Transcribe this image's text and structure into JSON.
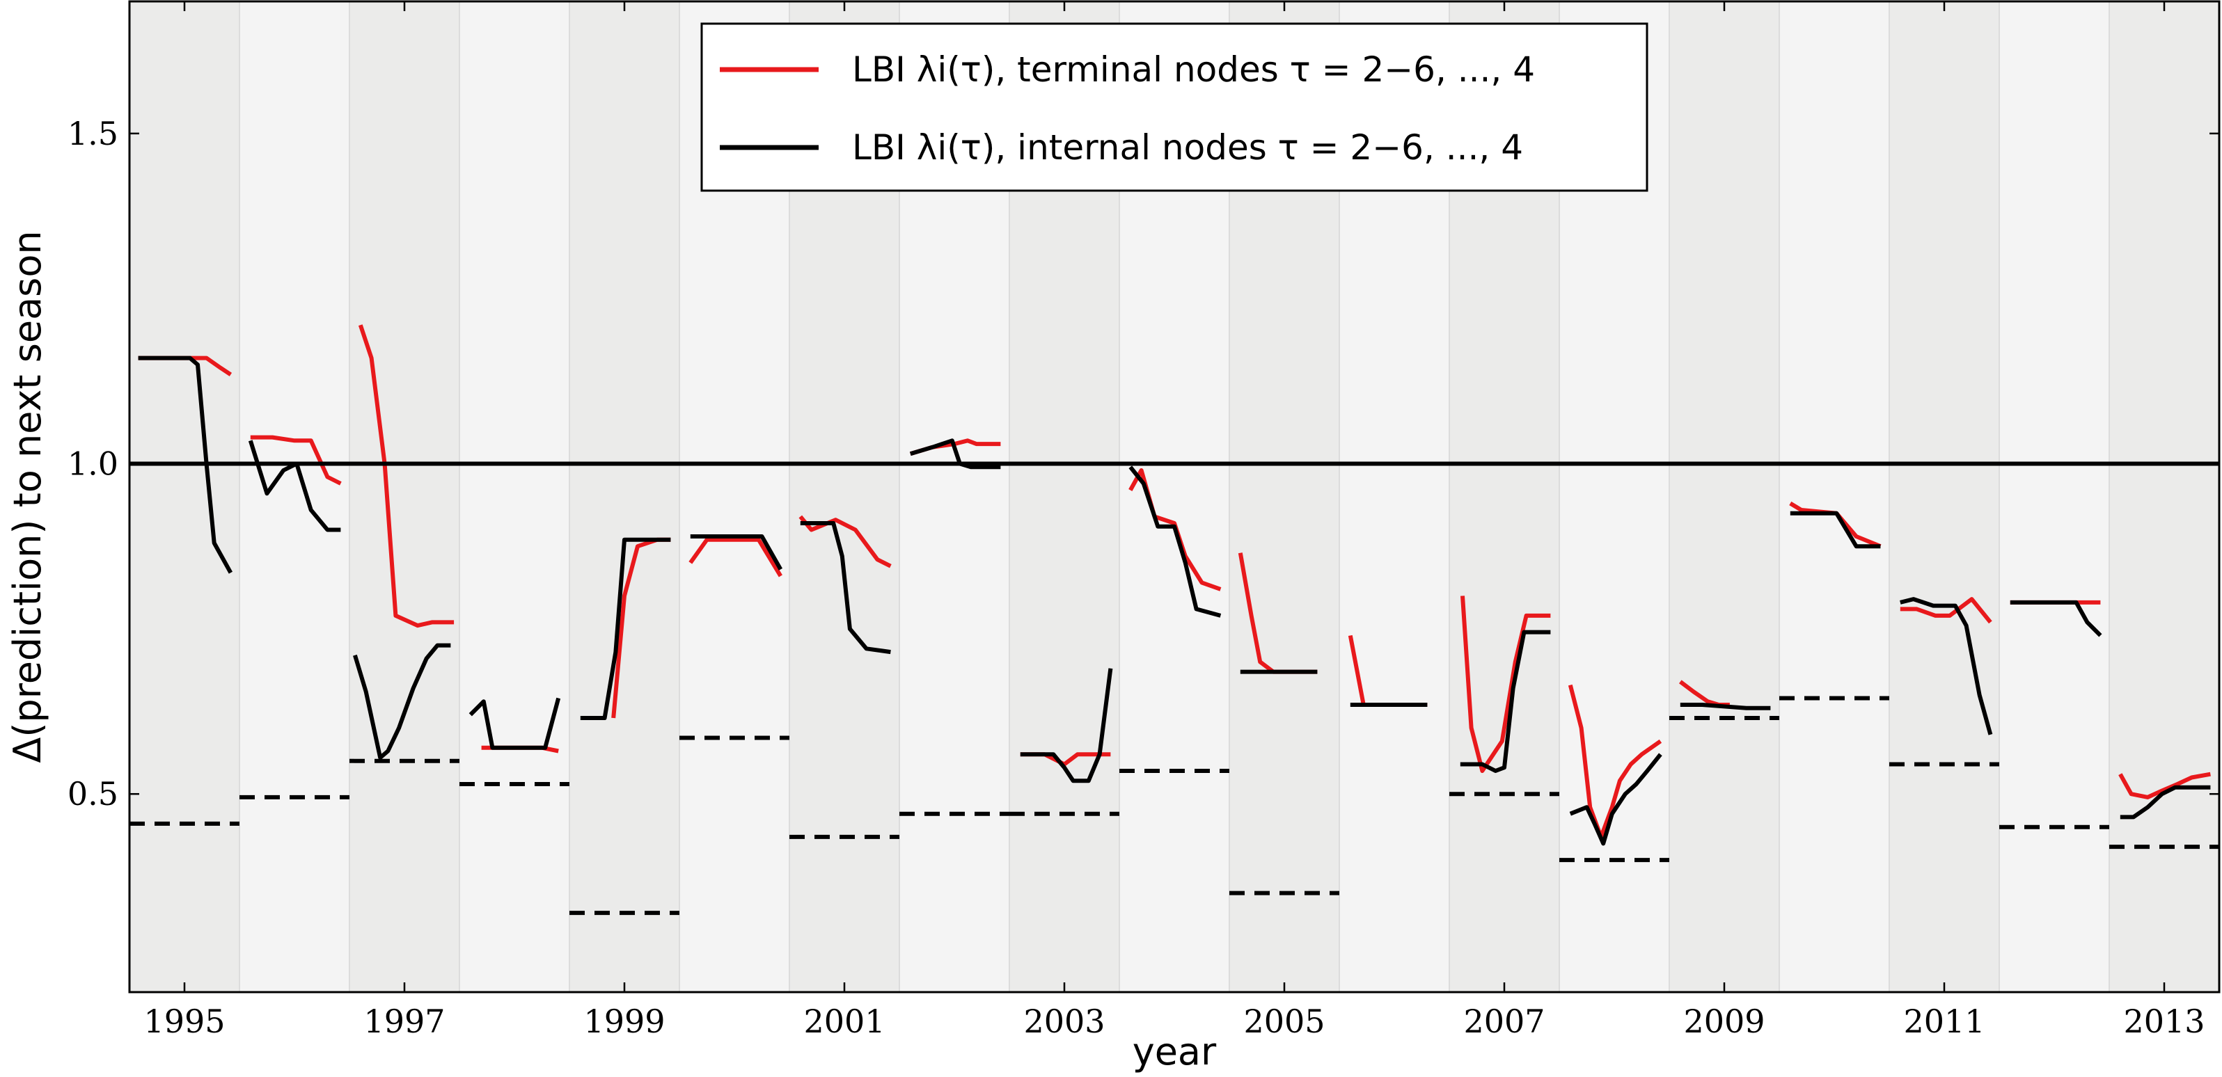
{
  "chart_data": {
    "type": "line",
    "xlabel": "year",
    "ylabel": "Δ(prediction) to next season",
    "xlim": [
      1994.5,
      2013.5
    ],
    "ylim": [
      0.2,
      1.7
    ],
    "xticks": [
      1995,
      1997,
      1999,
      2001,
      2003,
      2005,
      2007,
      2009,
      2011,
      2013
    ],
    "xtick_labels": [
      "1995",
      "1997",
      "1999",
      "2001",
      "2003",
      "2005",
      "2007",
      "2009",
      "2011",
      "2013"
    ],
    "yticks": [
      0.5,
      1.0,
      1.5
    ],
    "ytick_labels": [
      "0.5",
      "1.0",
      "1.5"
    ],
    "grid": false,
    "background": "alternating shaded vertical bands, one per season",
    "reference_line": {
      "y": 1.0,
      "color": "#000000"
    },
    "legend_position": "top-center",
    "series": [
      {
        "name": "LBI λi(τ), terminal nodes τ = 2^−6, ..., 4",
        "color": "#e8191c",
        "segments": [
          {
            "x": [
              1994.58,
              1995.07,
              1995.2,
              1995.33,
              1995.42
            ],
            "y": [
              1.16,
              1.16,
              1.16,
              1.145,
              1.135
            ]
          },
          {
            "x": [
              1995.6,
              1995.8,
              1996.0,
              1996.15,
              1996.3,
              1996.42
            ],
            "y": [
              1.04,
              1.04,
              1.035,
              1.035,
              0.98,
              0.97
            ]
          },
          {
            "x": [
              1996.6,
              1996.7,
              1996.82,
              1996.92,
              1997.12,
              1997.25,
              1997.45
            ],
            "y": [
              1.21,
              1.16,
              1.0,
              0.77,
              0.755,
              0.76,
              0.76
            ]
          },
          {
            "x": [
              1997.7,
              1997.85,
              1998.05,
              1998.25,
              1998.4
            ],
            "y": [
              0.57,
              0.57,
              0.57,
              0.57,
              0.565
            ]
          },
          {
            "x": [
              1998.9,
              1999.0,
              1999.12,
              1999.3,
              1999.42
            ],
            "y": [
              0.615,
              0.8,
              0.875,
              0.885,
              0.885
            ]
          },
          {
            "x": [
              1999.6,
              1999.75,
              2000.05,
              2000.22,
              2000.42
            ],
            "y": [
              0.85,
              0.885,
              0.885,
              0.885,
              0.83
            ]
          },
          {
            "x": [
              2000.6,
              2000.7,
              2000.92,
              2001.1,
              2001.3,
              2001.42
            ],
            "y": [
              0.92,
              0.9,
              0.915,
              0.9,
              0.855,
              0.845
            ]
          },
          {
            "x": [
              2001.6,
              2001.8,
              2002.0,
              2002.12,
              2002.2,
              2002.42
            ],
            "y": [
              1.015,
              1.025,
              1.03,
              1.035,
              1.03,
              1.03
            ]
          },
          {
            "x": [
              2002.6,
              2002.82,
              2003.0,
              2003.12,
              2003.42
            ],
            "y": [
              0.56,
              0.56,
              0.545,
              0.56,
              0.56
            ]
          },
          {
            "x": [
              2003.6,
              2003.7,
              2003.82,
              2004.0,
              2004.1,
              2004.25,
              2004.42
            ],
            "y": [
              0.96,
              0.99,
              0.92,
              0.91,
              0.86,
              0.82,
              0.81
            ]
          },
          {
            "x": [
              2004.6,
              2004.7,
              2004.78,
              2004.9,
              2005.3
            ],
            "y": [
              0.865,
              0.77,
              0.7,
              0.685,
              0.685
            ]
          },
          {
            "x": [
              2005.6,
              2005.72,
              2006.3
            ],
            "y": [
              0.74,
              0.635,
              0.635
            ]
          },
          {
            "x": [
              2006.62,
              2006.7,
              2006.8,
              2006.98,
              2007.1,
              2007.2,
              2007.42
            ],
            "y": [
              0.8,
              0.6,
              0.535,
              0.58,
              0.7,
              0.77,
              0.77
            ]
          },
          {
            "x": [
              2007.6,
              2007.7,
              2007.78,
              2007.88,
              2007.98,
              2008.05,
              2008.15,
              2008.25,
              2008.42
            ],
            "y": [
              0.665,
              0.6,
              0.48,
              0.435,
              0.48,
              0.52,
              0.545,
              0.56,
              0.58
            ]
          },
          {
            "x": [
              2008.6,
              2008.72,
              2008.85,
              2008.95,
              2009.05
            ],
            "y": [
              0.67,
              0.655,
              0.64,
              0.635,
              0.635
            ]
          },
          {
            "x": [
              2009.6,
              2009.7,
              2010.02,
              2010.2,
              2010.42
            ],
            "y": [
              0.94,
              0.93,
              0.925,
              0.89,
              0.875
            ]
          },
          {
            "x": [
              2010.6,
              2010.75,
              2010.92,
              2011.05,
              2011.25,
              2011.42
            ],
            "y": [
              0.78,
              0.78,
              0.77,
              0.77,
              0.795,
              0.76
            ]
          },
          {
            "x": [
              2011.6,
              2011.9,
              2012.42
            ],
            "y": [
              0.79,
              0.79,
              0.79
            ]
          },
          {
            "x": [
              2012.6,
              2012.7,
              2012.85,
              2012.98,
              2013.12,
              2013.25,
              2013.42
            ],
            "y": [
              0.53,
              0.5,
              0.495,
              0.505,
              0.515,
              0.525,
              0.53
            ]
          }
        ]
      },
      {
        "name": "LBI λi(τ), internal nodes τ = 2^−6, ..., 4",
        "color": "#000000",
        "segments": [
          {
            "x": [
              1994.58,
              1994.75,
              1995.05,
              1995.12,
              1995.2,
              1995.27,
              1995.42
            ],
            "y": [
              1.16,
              1.16,
              1.16,
              1.15,
              1.0,
              0.88,
              0.835
            ]
          },
          {
            "x": [
              1995.6,
              1995.75,
              1995.9,
              1996.02,
              1996.15,
              1996.3,
              1996.42
            ],
            "y": [
              1.035,
              0.955,
              0.99,
              1.0,
              0.93,
              0.9,
              0.9
            ]
          },
          {
            "x": [
              1996.55,
              1996.65,
              1996.78,
              1996.85,
              1996.95,
              1997.08,
              1997.2,
              1997.3,
              1997.42
            ],
            "y": [
              0.71,
              0.655,
              0.555,
              0.565,
              0.6,
              0.66,
              0.705,
              0.725,
              0.725
            ]
          },
          {
            "x": [
              1997.6,
              1997.72,
              1997.8,
              1998.05,
              1998.28,
              1998.4
            ],
            "y": [
              0.62,
              0.64,
              0.57,
              0.57,
              0.57,
              0.645
            ]
          },
          {
            "x": [
              1998.6,
              1998.82,
              1998.92,
              1999.0,
              1999.2,
              1999.42
            ],
            "y": [
              0.615,
              0.615,
              0.715,
              0.885,
              0.885,
              0.885
            ]
          },
          {
            "x": [
              1999.6,
              1999.92,
              2000.25,
              2000.42
            ],
            "y": [
              0.89,
              0.89,
              0.89,
              0.84
            ]
          },
          {
            "x": [
              2000.6,
              2000.9,
              2000.98,
              2001.05,
              2001.2,
              2001.42
            ],
            "y": [
              0.91,
              0.91,
              0.86,
              0.75,
              0.72,
              0.715
            ]
          },
          {
            "x": [
              2001.6,
              2001.8,
              2001.98,
              2002.05,
              2002.15,
              2002.42
            ],
            "y": [
              1.015,
              1.025,
              1.035,
              1.0,
              0.995,
              0.995
            ]
          },
          {
            "x": [
              2002.6,
              2002.78,
              2002.9,
              2003.0,
              2003.08,
              2003.22,
              2003.32,
              2003.42
            ],
            "y": [
              0.56,
              0.56,
              0.56,
              0.54,
              0.52,
              0.52,
              0.56,
              0.69
            ]
          },
          {
            "x": [
              2003.6,
              2003.72,
              2003.85,
              2004.0,
              2004.1,
              2004.2,
              2004.42
            ],
            "y": [
              0.995,
              0.97,
              0.905,
              0.905,
              0.85,
              0.78,
              0.77
            ]
          },
          {
            "x": [
              2004.6,
              2005.3
            ],
            "y": [
              0.685,
              0.685
            ]
          },
          {
            "x": [
              2005.6,
              2006.3
            ],
            "y": [
              0.635,
              0.635
            ]
          },
          {
            "x": [
              2006.6,
              2006.8,
              2006.92,
              2007.0,
              2007.08,
              2007.18,
              2007.42
            ],
            "y": [
              0.545,
              0.545,
              0.535,
              0.54,
              0.66,
              0.745,
              0.745
            ]
          },
          {
            "x": [
              2007.6,
              2007.75,
              2007.82,
              2007.9,
              2007.98,
              2008.1,
              2008.2,
              2008.3,
              2008.42
            ],
            "y": [
              0.47,
              0.48,
              0.455,
              0.425,
              0.47,
              0.5,
              0.515,
              0.535,
              0.56
            ]
          },
          {
            "x": [
              2008.6,
              2008.8,
              2009.2,
              2009.42
            ],
            "y": [
              0.635,
              0.635,
              0.63,
              0.63
            ]
          },
          {
            "x": [
              2009.6,
              2010.02,
              2010.2,
              2010.42
            ],
            "y": [
              0.925,
              0.925,
              0.875,
              0.875
            ]
          },
          {
            "x": [
              2010.6,
              2010.72,
              2010.9,
              2011.1,
              2011.2,
              2011.32,
              2011.42
            ],
            "y": [
              0.79,
              0.795,
              0.785,
              0.785,
              0.755,
              0.65,
              0.59
            ]
          },
          {
            "x": [
              2011.6,
              2012.02,
              2012.2,
              2012.3,
              2012.42
            ],
            "y": [
              0.79,
              0.79,
              0.79,
              0.76,
              0.74
            ]
          },
          {
            "x": [
              2012.6,
              2012.72,
              2012.85,
              2012.98,
              2013.1,
              2013.42
            ],
            "y": [
              0.465,
              0.465,
              0.48,
              0.5,
              0.51,
              0.51
            ]
          }
        ]
      },
      {
        "name": "",
        "color": "#000000",
        "dashed": true,
        "segments": [
          {
            "x": [
              1994.5,
              1995.5
            ],
            "y": [
              0.455,
              0.455
            ]
          },
          {
            "x": [
              1995.5,
              1996.5
            ],
            "y": [
              0.495,
              0.495
            ]
          },
          {
            "x": [
              1996.5,
              1997.5
            ],
            "y": [
              0.55,
              0.55
            ]
          },
          {
            "x": [
              1997.5,
              1998.5
            ],
            "y": [
              0.515,
              0.515
            ]
          },
          {
            "x": [
              1998.5,
              1999.5
            ],
            "y": [
              0.32,
              0.32
            ]
          },
          {
            "x": [
              1999.5,
              2000.5
            ],
            "y": [
              0.585,
              0.585
            ]
          },
          {
            "x": [
              2000.5,
              2001.5
            ],
            "y": [
              0.435,
              0.435
            ]
          },
          {
            "x": [
              2001.5,
              2002.5
            ],
            "y": [
              0.47,
              0.47
            ]
          },
          {
            "x": [
              2002.5,
              2003.5
            ],
            "y": [
              0.47,
              0.47
            ]
          },
          {
            "x": [
              2003.5,
              2004.5
            ],
            "y": [
              0.535,
              0.535
            ]
          },
          {
            "x": [
              2004.5,
              2005.5
            ],
            "y": [
              0.35,
              0.35
            ]
          },
          {
            "x": [
              2006.5,
              2007.5
            ],
            "y": [
              0.5,
              0.5
            ]
          },
          {
            "x": [
              2007.5,
              2008.5
            ],
            "y": [
              0.4,
              0.4
            ]
          },
          {
            "x": [
              2008.5,
              2009.5
            ],
            "y": [
              0.615,
              0.615
            ]
          },
          {
            "x": [
              2009.5,
              2010.5
            ],
            "y": [
              0.645,
              0.645
            ]
          },
          {
            "x": [
              2010.5,
              2011.5
            ],
            "y": [
              0.545,
              0.545
            ]
          },
          {
            "x": [
              2011.5,
              2012.5
            ],
            "y": [
              0.45,
              0.45
            ]
          },
          {
            "x": [
              2012.5,
              2013.5
            ],
            "y": [
              0.42,
              0.42
            ]
          }
        ]
      }
    ],
    "legend": {
      "entries": [
        {
          "text": "LBI λi(τ), terminal nodes τ = 2−6, ..., 4",
          "color": "#e8191c"
        },
        {
          "text": "LBI λi(τ), internal nodes τ = 2−6, ..., 4",
          "color": "#000000"
        }
      ]
    },
    "colors": {
      "band_dark": "#ebebea",
      "band_light": "#f4f4f4",
      "terminal": "#e8191c",
      "internal": "#000000"
    }
  }
}
